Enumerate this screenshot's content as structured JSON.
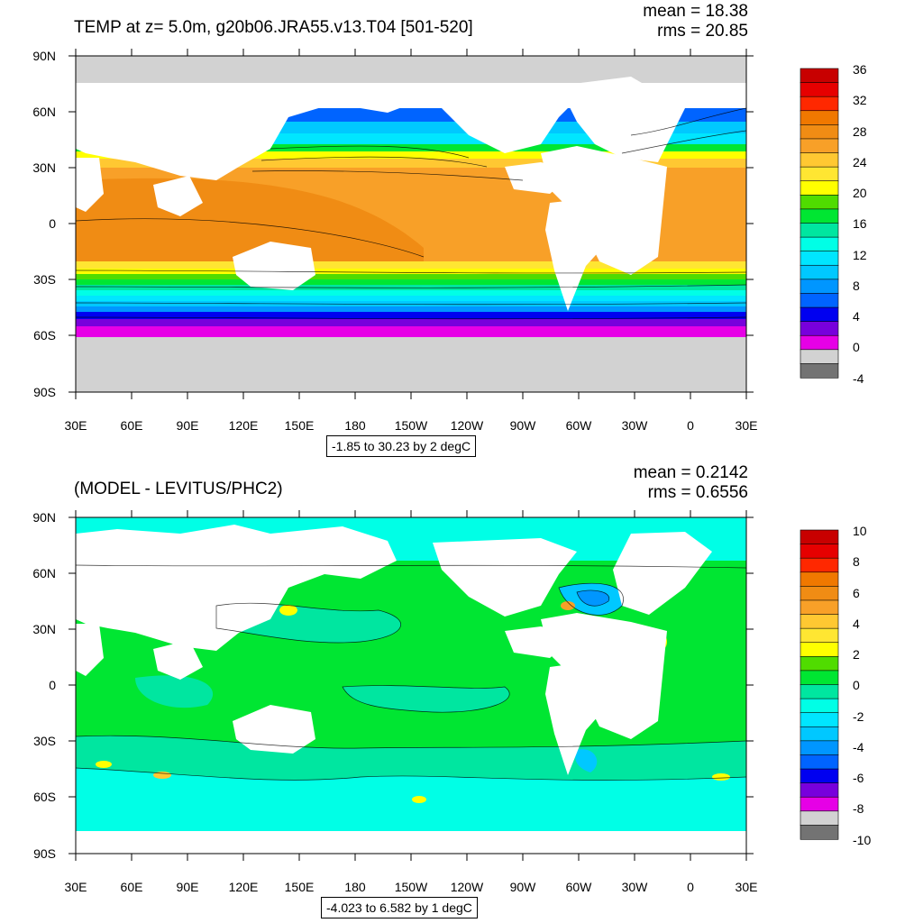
{
  "panels": [
    {
      "id": "top",
      "title": "TEMP at z=   5.0m, g20b06.JRA55.v13.T04 [501-520]",
      "mean_label": "mean = 18.38",
      "rms_label": "rms = 20.85",
      "subtitle": "-1.85 to 30.23 by 2 degC",
      "lat_ticks": [
        "90N",
        "60N",
        "30N",
        "0",
        "30S",
        "60S",
        "90S"
      ],
      "lon_ticks": [
        "30E",
        "60E",
        "90E",
        "120E",
        "150E",
        "180",
        "150W",
        "120W",
        "90W",
        "60W",
        "30W",
        "0",
        "30E"
      ],
      "colorbar": {
        "labels": [
          "36",
          "32",
          "28",
          "24",
          "20",
          "16",
          "12",
          "8",
          "4",
          "0",
          "-4"
        ],
        "colors": [
          "#c80000",
          "#e60000",
          "#ff2800",
          "#f07800",
          "#f08c14",
          "#f8a028",
          "#ffc832",
          "#ffe632",
          "#ffff00",
          "#50dc00",
          "#00e632",
          "#00e6a0",
          "#00ffe6",
          "#00e6ff",
          "#00c8ff",
          "#0096ff",
          "#0064ff",
          "#0000f0",
          "#7800dc",
          "#e600e6",
          "#d2d2d2",
          "#737373"
        ]
      }
    },
    {
      "id": "bottom",
      "title": "(MODEL - LEVITUS/PHC2)",
      "mean_label": "mean = 0.2142",
      "rms_label": "rms = 0.6556",
      "subtitle": "-4.023 to 6.582 by 1 degC",
      "lat_ticks": [
        "90N",
        "60N",
        "30N",
        "0",
        "30S",
        "60S",
        "90S"
      ],
      "lon_ticks": [
        "30E",
        "60E",
        "90E",
        "120E",
        "150E",
        "180",
        "150W",
        "120W",
        "90W",
        "60W",
        "30W",
        "0",
        "30E"
      ],
      "colorbar": {
        "labels": [
          "10",
          "8",
          "6",
          "4",
          "2",
          "0",
          "-2",
          "-4",
          "-6",
          "-8",
          "-10"
        ],
        "colors": [
          "#c80000",
          "#e60000",
          "#ff2800",
          "#f07800",
          "#f08c14",
          "#f8a028",
          "#ffc832",
          "#ffe632",
          "#ffff00",
          "#50dc00",
          "#00e632",
          "#00e6a0",
          "#00ffe6",
          "#00e6ff",
          "#00c8ff",
          "#0096ff",
          "#0064ff",
          "#0000f0",
          "#7800dc",
          "#e600e6",
          "#d2d2d2",
          "#737373"
        ]
      }
    }
  ]
}
